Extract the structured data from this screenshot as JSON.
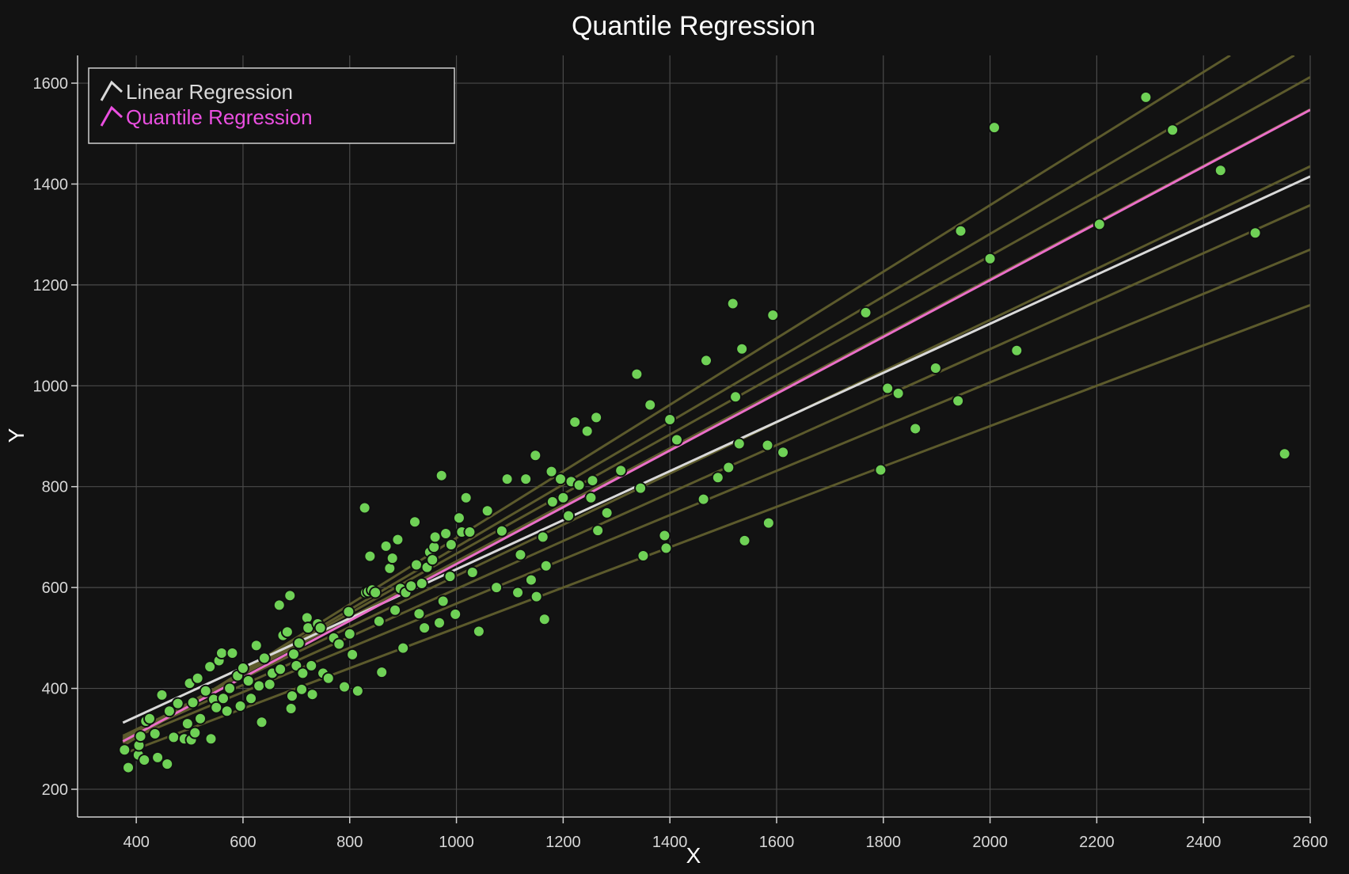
{
  "chart_data": {
    "type": "scatter",
    "title": "Quantile Regression",
    "xlabel": "X",
    "ylabel": "Y",
    "xlim": [
      290,
      2600
    ],
    "ylim": [
      145,
      1655
    ],
    "x_ticks": [
      400,
      600,
      800,
      1000,
      1200,
      1400,
      1600,
      1800,
      2000,
      2200,
      2400,
      2600
    ],
    "y_ticks": [
      200,
      400,
      600,
      800,
      1000,
      1200,
      1400,
      1600
    ],
    "grid": true,
    "legend": {
      "position": "top-left",
      "entries": [
        {
          "label": "Linear Regression",
          "color": "#d9d9d9"
        },
        {
          "label": "Quantile Regression",
          "color": "#ea4fe0"
        }
      ]
    },
    "colors": {
      "background": "#121212",
      "grid": "#4a4a4a",
      "points": "#6fd156",
      "point_edge": "#101010",
      "quantile_lines": "#5c5a2c",
      "linear_regression": "#d9d9d9",
      "quantile_regression": "#ea6fc8"
    },
    "linear_regression_line": {
      "x": [
        375,
        2600
      ],
      "y": [
        332,
        1415
      ]
    },
    "quantile_regression_line": {
      "x": [
        375,
        2600
      ],
      "y": [
        295,
        1547
      ]
    },
    "quantile_lines": [
      {
        "x": [
          375,
          2450
        ],
        "y": [
          286,
          1655
        ]
      },
      {
        "x": [
          375,
          2570
        ],
        "y": [
          292,
          1655
        ]
      },
      {
        "x": [
          375,
          2600
        ],
        "y": [
          298,
          1612
        ]
      },
      {
        "x": [
          375,
          2600
        ],
        "y": [
          302,
          1548
        ]
      },
      {
        "x": [
          375,
          2600
        ],
        "y": [
          306,
          1435
        ]
      },
      {
        "x": [
          375,
          2600
        ],
        "y": [
          300,
          1358
        ]
      },
      {
        "x": [
          375,
          2600
        ],
        "y": [
          294,
          1270
        ]
      },
      {
        "x": [
          375,
          2600
        ],
        "y": [
          270,
          1160
        ]
      }
    ],
    "points": [
      [
        378,
        278
      ],
      [
        385,
        243
      ],
      [
        404,
        268
      ],
      [
        405,
        287
      ],
      [
        408,
        305
      ],
      [
        415,
        258
      ],
      [
        418,
        335
      ],
      [
        425,
        340
      ],
      [
        435,
        310
      ],
      [
        440,
        263
      ],
      [
        448,
        387
      ],
      [
        458,
        250
      ],
      [
        462,
        355
      ],
      [
        470,
        303
      ],
      [
        478,
        370
      ],
      [
        490,
        300
      ],
      [
        496,
        330
      ],
      [
        500,
        410
      ],
      [
        503,
        298
      ],
      [
        506,
        372
      ],
      [
        510,
        312
      ],
      [
        515,
        420
      ],
      [
        520,
        340
      ],
      [
        530,
        395
      ],
      [
        538,
        443
      ],
      [
        540,
        300
      ],
      [
        545,
        378
      ],
      [
        550,
        362
      ],
      [
        555,
        455
      ],
      [
        560,
        470
      ],
      [
        563,
        380
      ],
      [
        570,
        355
      ],
      [
        575,
        400
      ],
      [
        580,
        470
      ],
      [
        590,
        425
      ],
      [
        595,
        365
      ],
      [
        600,
        440
      ],
      [
        610,
        415
      ],
      [
        615,
        380
      ],
      [
        625,
        485
      ],
      [
        630,
        405
      ],
      [
        635,
        333
      ],
      [
        640,
        460
      ],
      [
        650,
        408
      ],
      [
        655,
        430
      ],
      [
        668,
        565
      ],
      [
        670,
        438
      ],
      [
        675,
        505
      ],
      [
        683,
        512
      ],
      [
        688,
        584
      ],
      [
        690,
        360
      ],
      [
        692,
        385
      ],
      [
        695,
        468
      ],
      [
        700,
        445
      ],
      [
        705,
        490
      ],
      [
        710,
        398
      ],
      [
        712,
        430
      ],
      [
        720,
        540
      ],
      [
        722,
        520
      ],
      [
        728,
        445
      ],
      [
        730,
        388
      ],
      [
        740,
        528
      ],
      [
        745,
        520
      ],
      [
        750,
        430
      ],
      [
        760,
        420
      ],
      [
        770,
        500
      ],
      [
        780,
        488
      ],
      [
        790,
        403
      ],
      [
        798,
        552
      ],
      [
        800,
        508
      ],
      [
        805,
        467
      ],
      [
        815,
        395
      ],
      [
        828,
        758
      ],
      [
        830,
        590
      ],
      [
        835,
        592
      ],
      [
        838,
        662
      ],
      [
        842,
        595
      ],
      [
        848,
        590
      ],
      [
        855,
        533
      ],
      [
        860,
        432
      ],
      [
        868,
        682
      ],
      [
        875,
        638
      ],
      [
        880,
        658
      ],
      [
        885,
        555
      ],
      [
        890,
        695
      ],
      [
        895,
        598
      ],
      [
        900,
        480
      ],
      [
        905,
        590
      ],
      [
        915,
        603
      ],
      [
        922,
        730
      ],
      [
        925,
        645
      ],
      [
        930,
        548
      ],
      [
        935,
        608
      ],
      [
        940,
        520
      ],
      [
        945,
        640
      ],
      [
        950,
        670
      ],
      [
        955,
        655
      ],
      [
        958,
        680
      ],
      [
        960,
        700
      ],
      [
        968,
        530
      ],
      [
        972,
        822
      ],
      [
        975,
        573
      ],
      [
        980,
        707
      ],
      [
        988,
        622
      ],
      [
        990,
        685
      ],
      [
        998,
        547
      ],
      [
        1005,
        738
      ],
      [
        1010,
        710
      ],
      [
        1018,
        778
      ],
      [
        1025,
        710
      ],
      [
        1030,
        630
      ],
      [
        1042,
        513
      ],
      [
        1058,
        752
      ],
      [
        1075,
        600
      ],
      [
        1085,
        712
      ],
      [
        1095,
        815
      ],
      [
        1115,
        590
      ],
      [
        1120,
        665
      ],
      [
        1130,
        815
      ],
      [
        1140,
        615
      ],
      [
        1148,
        862
      ],
      [
        1150,
        582
      ],
      [
        1162,
        700
      ],
      [
        1165,
        537
      ],
      [
        1168,
        643
      ],
      [
        1178,
        830
      ],
      [
        1180,
        770
      ],
      [
        1195,
        815
      ],
      [
        1200,
        778
      ],
      [
        1210,
        742
      ],
      [
        1215,
        810
      ],
      [
        1222,
        928
      ],
      [
        1230,
        803
      ],
      [
        1245,
        910
      ],
      [
        1252,
        778
      ],
      [
        1255,
        812
      ],
      [
        1262,
        937
      ],
      [
        1265,
        713
      ],
      [
        1282,
        748
      ],
      [
        1308,
        832
      ],
      [
        1338,
        1023
      ],
      [
        1345,
        797
      ],
      [
        1350,
        663
      ],
      [
        1363,
        962
      ],
      [
        1390,
        703
      ],
      [
        1393,
        678
      ],
      [
        1400,
        933
      ],
      [
        1413,
        893
      ],
      [
        1463,
        775
      ],
      [
        1468,
        1050
      ],
      [
        1490,
        818
      ],
      [
        1510,
        838
      ],
      [
        1518,
        1163
      ],
      [
        1523,
        978
      ],
      [
        1530,
        885
      ],
      [
        1535,
        1073
      ],
      [
        1540,
        693
      ],
      [
        1583,
        882
      ],
      [
        1585,
        728
      ],
      [
        1593,
        1140
      ],
      [
        1612,
        868
      ],
      [
        1767,
        1145
      ],
      [
        1795,
        833
      ],
      [
        1808,
        995
      ],
      [
        1828,
        985
      ],
      [
        1860,
        915
      ],
      [
        1898,
        1035
      ],
      [
        1940,
        970
      ],
      [
        1945,
        1307
      ],
      [
        2000,
        1252
      ],
      [
        2008,
        1512
      ],
      [
        2050,
        1070
      ],
      [
        2205,
        1320
      ],
      [
        2292,
        1572
      ],
      [
        2342,
        1507
      ],
      [
        2432,
        1427
      ],
      [
        2497,
        1303
      ],
      [
        2552,
        865
      ]
    ]
  }
}
